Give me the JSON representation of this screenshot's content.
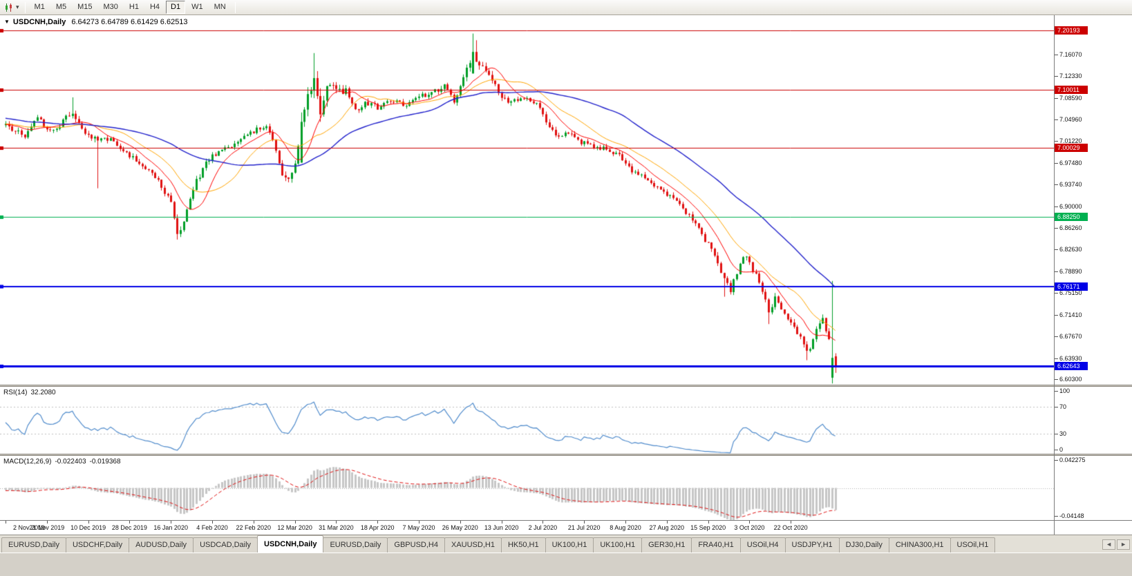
{
  "toolbar": {
    "dropdown_glyph": "▾",
    "timeframes": [
      {
        "label": "M1",
        "active": false
      },
      {
        "label": "M5",
        "active": false
      },
      {
        "label": "M15",
        "active": false
      },
      {
        "label": "M30",
        "active": false
      },
      {
        "label": "H1",
        "active": false
      },
      {
        "label": "H4",
        "active": false
      },
      {
        "label": "D1",
        "active": true
      },
      {
        "label": "W1",
        "active": false
      },
      {
        "label": "MN",
        "active": false
      }
    ]
  },
  "chart": {
    "menu_glyph": "▼",
    "symbol_title": "USDCNH,Daily",
    "ohlc_text": "6.64273 6.64789 6.61429 6.62513",
    "price_axis_labels": [
      "7.16070",
      "7.12330",
      "7.08590",
      "7.04960",
      "7.01220",
      "6.97480",
      "6.93740",
      "6.90000",
      "6.86260",
      "6.82630",
      "6.78890",
      "6.75150",
      "6.71410",
      "6.67670",
      "6.63930",
      "6.60300"
    ],
    "date_labels": [
      "2 Nov 2019",
      "21 Nov 2019",
      "10 Dec 2019",
      "28 Dec 2019",
      "16 Jan 2020",
      "4 Feb 2020",
      "22 Feb 2020",
      "12 Mar 2020",
      "31 Mar 2020",
      "18 Apr 2020",
      "7 May 2020",
      "26 May 2020",
      "13 Jun 2020",
      "2 Jul 2020",
      "21 Jul 2020",
      "8 Aug 2020",
      "27 Aug 2020",
      "15 Sep 2020",
      "3 Oct 2020",
      "22 Oct 2020"
    ],
    "h_lines": [
      {
        "label": "7.20193",
        "value": 7.20193,
        "color": "#cc0000",
        "width": 1
      },
      {
        "label": "7.10011",
        "value": 7.10011,
        "color": "#cc0000",
        "width": 1
      },
      {
        "label": "7.00029",
        "value": 7.00029,
        "color": "#cc0000",
        "width": 1
      },
      {
        "label": "6.88250",
        "value": 6.8825,
        "color": "#00b050",
        "width": 1
      },
      {
        "label": "6.76171",
        "value": 6.76171,
        "color": "#0000e6",
        "width": 2
      },
      {
        "label": "6.62643",
        "value": 6.62643,
        "color": "#0000e6",
        "width": 3
      }
    ],
    "colors": {
      "up": "#009e26",
      "down": "#e01010",
      "ma_fast": "#ff0000",
      "ma_mid": "#ffa500",
      "ma_slow": "#2222cc",
      "background": "#ffffff",
      "axis_text": "#111111"
    }
  },
  "rsi": {
    "name": "RSI(14)",
    "value": "32.2080",
    "line_color": "#4f8bcc",
    "axis": [
      {
        "label": "100",
        "value": 100,
        "dashed": false
      },
      {
        "label": "70",
        "value": 70,
        "dashed": true
      },
      {
        "label": "30",
        "value": 30,
        "dashed": true
      },
      {
        "label": "0",
        "value": 0,
        "dashed": false
      }
    ]
  },
  "macd": {
    "name": "MACD(12,26,9)",
    "value": "-0.022403",
    "signal": "-0.019368",
    "histogram_color": "#c6c6c6",
    "signal_color": "#e01010",
    "axis": [
      {
        "label": "0.042275",
        "value": 0.042275
      },
      {
        "label": "-0.04148",
        "value": -0.04148
      }
    ]
  },
  "tabs": {
    "scroll_left": "◄",
    "scroll_right": "►",
    "items": [
      {
        "label": "EURUSD,Daily",
        "active": false
      },
      {
        "label": "USDCHF,Daily",
        "active": false
      },
      {
        "label": "AUDUSD,Daily",
        "active": false
      },
      {
        "label": "USDCAD,Daily",
        "active": false
      },
      {
        "label": "USDCNH,Daily",
        "active": true
      },
      {
        "label": "EURUSD,Daily",
        "active": false
      },
      {
        "label": "GBPUSD,H4",
        "active": false
      },
      {
        "label": "XAUUSD,H1",
        "active": false
      },
      {
        "label": "HK50,H1",
        "active": false
      },
      {
        "label": "UK100,H1",
        "active": false
      },
      {
        "label": "UK100,H1",
        "active": false
      },
      {
        "label": "GER30,H1",
        "active": false
      },
      {
        "label": "FRA40,H1",
        "active": false
      },
      {
        "label": "USOil,H4",
        "active": false
      },
      {
        "label": "USDJPY,H1",
        "active": false
      },
      {
        "label": "DJ30,Daily",
        "active": false
      },
      {
        "label": "CHINA300,H1",
        "active": false
      },
      {
        "label": "USOil,H1",
        "active": false
      }
    ]
  },
  "chart_data": {
    "type": "candlestick",
    "symbol": "USDCNH",
    "timeframe": "Daily",
    "title": "USDCNH,Daily",
    "last_candle": {
      "open": 6.64273,
      "high": 6.64789,
      "low": 6.61429,
      "close": 6.62513
    },
    "visible_candles": 262,
    "price_range": {
      "top": 7.228,
      "bottom": 6.594
    },
    "horizontal_levels": [
      7.20193,
      7.10011,
      7.00029,
      6.8825,
      6.76171,
      6.62643
    ],
    "indicators": {
      "moving_averages": [
        {
          "period": 10,
          "color": "#ff0000"
        },
        {
          "period": 20,
          "color": "#ffa500"
        },
        {
          "period": 50,
          "color": "#2222cc"
        }
      ],
      "rsi": {
        "period": 14,
        "last": 32.208,
        "levels": [
          30,
          70
        ]
      },
      "macd": {
        "fast": 12,
        "slow": 26,
        "signal": 9,
        "last": -0.022403,
        "last_signal": -0.019368,
        "axis_max": 0.042275,
        "axis_min": -0.04148
      }
    },
    "close_anchors": [
      [
        -60,
        7.085,
        0.009
      ],
      [
        -40,
        7.062,
        0.008
      ],
      [
        -20,
        7.046,
        0.008
      ],
      [
        0,
        7.038,
        0.008
      ],
      [
        6,
        7.022,
        0.008
      ],
      [
        10,
        7.05,
        0.009
      ],
      [
        14,
        7.028,
        0.008
      ],
      [
        18,
        7.045,
        0.009
      ],
      [
        21,
        7.062,
        0.01
      ],
      [
        25,
        7.028,
        0.008
      ],
      [
        29,
        7.012,
        0.01
      ],
      [
        33,
        7.015,
        0.006
      ],
      [
        38,
        6.992,
        0.007
      ],
      [
        43,
        6.968,
        0.007
      ],
      [
        48,
        6.945,
        0.008
      ],
      [
        52,
        6.905,
        0.009
      ],
      [
        54,
        6.858,
        0.01
      ],
      [
        56,
        6.87,
        0.009
      ],
      [
        59,
        6.93,
        0.01
      ],
      [
        63,
        6.978,
        0.009
      ],
      [
        67,
        6.992,
        0.007
      ],
      [
        71,
        7.005,
        0.007
      ],
      [
        75,
        7.022,
        0.007
      ],
      [
        79,
        7.032,
        0.007
      ],
      [
        82,
        7.04,
        0.008
      ],
      [
        85,
        6.998,
        0.009
      ],
      [
        87,
        6.955,
        0.01
      ],
      [
        89,
        6.942,
        0.01
      ],
      [
        91,
        6.975,
        0.012
      ],
      [
        93,
        7.045,
        0.016
      ],
      [
        95,
        7.09,
        0.018
      ],
      [
        97,
        7.12,
        0.022
      ],
      [
        99,
        7.065,
        0.02
      ],
      [
        101,
        7.115,
        0.016
      ],
      [
        104,
        7.095,
        0.012
      ],
      [
        107,
        7.1,
        0.01
      ],
      [
        110,
        7.062,
        0.01
      ],
      [
        113,
        7.078,
        0.009
      ],
      [
        117,
        7.07,
        0.008
      ],
      [
        121,
        7.082,
        0.007
      ],
      [
        126,
        7.072,
        0.007
      ],
      [
        130,
        7.088,
        0.007
      ],
      [
        134,
        7.095,
        0.008
      ],
      [
        138,
        7.105,
        0.009
      ],
      [
        141,
        7.082,
        0.009
      ],
      [
        144,
        7.12,
        0.01
      ],
      [
        147,
        7.165,
        0.014
      ],
      [
        150,
        7.135,
        0.012
      ],
      [
        153,
        7.118,
        0.01
      ],
      [
        156,
        7.09,
        0.009
      ],
      [
        159,
        7.078,
        0.008
      ],
      [
        163,
        7.088,
        0.008
      ],
      [
        167,
        7.075,
        0.008
      ],
      [
        170,
        7.048,
        0.008
      ],
      [
        173,
        7.018,
        0.008
      ],
      [
        177,
        7.028,
        0.007
      ],
      [
        181,
        7.01,
        0.007
      ],
      [
        185,
        7.002,
        0.007
      ],
      [
        189,
        6.998,
        0.007
      ],
      [
        193,
        6.988,
        0.007
      ],
      [
        197,
        6.962,
        0.007
      ],
      [
        201,
        6.948,
        0.007
      ],
      [
        205,
        6.932,
        0.007
      ],
      [
        209,
        6.918,
        0.007
      ],
      [
        213,
        6.898,
        0.008
      ],
      [
        217,
        6.868,
        0.008
      ],
      [
        220,
        6.842,
        0.008
      ],
      [
        223,
        6.82,
        0.009
      ],
      [
        226,
        6.772,
        0.01
      ],
      [
        228,
        6.755,
        0.01
      ],
      [
        230,
        6.788,
        0.01
      ],
      [
        232,
        6.818,
        0.01
      ],
      [
        234,
        6.8,
        0.009
      ],
      [
        237,
        6.772,
        0.009
      ],
      [
        240,
        6.718,
        0.01
      ],
      [
        242,
        6.742,
        0.009
      ],
      [
        245,
        6.712,
        0.009
      ],
      [
        248,
        6.692,
        0.009
      ],
      [
        250,
        6.672,
        0.009
      ],
      [
        252,
        6.648,
        0.009
      ],
      [
        254,
        6.672,
        0.009
      ],
      [
        256,
        6.7,
        0.009
      ],
      [
        257,
        6.712,
        0.009
      ],
      [
        259,
        6.668,
        0.009
      ],
      [
        260,
        6.64,
        0.01
      ],
      [
        261,
        6.62513,
        0.004
      ]
    ],
    "special_candles": {
      "21": {
        "h": 7.087
      },
      "29": {
        "l": 6.931
      },
      "54": {
        "l": 6.843
      },
      "93": {
        "o": 6.975,
        "c": 7.045
      },
      "97": {
        "h": 7.163
      },
      "99": {
        "l": 7.045
      },
      "147": {
        "o": 7.128,
        "h": 7.1965,
        "c": 7.165
      },
      "148": {
        "h": 7.185,
        "c": 7.148
      },
      "226": {
        "l": 6.745
      },
      "240": {
        "l": 6.698
      },
      "252": {
        "l": 6.636
      },
      "260": {
        "o": 6.606,
        "h": 6.772,
        "l": 6.596,
        "c": 6.64
      },
      "261": {
        "o": 6.64273,
        "h": 6.64789,
        "l": 6.61429,
        "c": 6.62513
      }
    },
    "note": "close_anchors are [bar_index, close, est_volatility] values read off the chart; bars between anchors are interpolated"
  }
}
